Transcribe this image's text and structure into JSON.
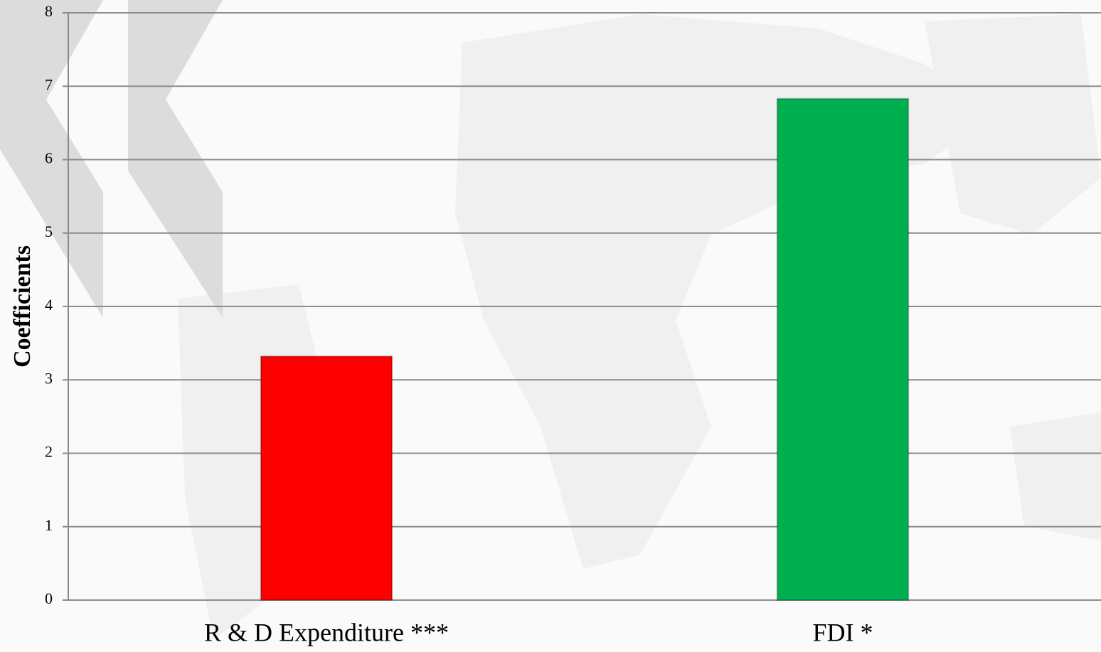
{
  "chart_data": {
    "type": "bar",
    "y_label": "Coefficients",
    "categories": [
      "R & D Expenditure  ***",
      "FDI *"
    ],
    "values": [
      3.32,
      6.83
    ],
    "colors": [
      "#ff0000",
      "#00b050"
    ],
    "ylim": [
      0,
      8
    ],
    "yticks": [
      0,
      1,
      2,
      3,
      4,
      5,
      6,
      7,
      8
    ],
    "grid": true
  }
}
